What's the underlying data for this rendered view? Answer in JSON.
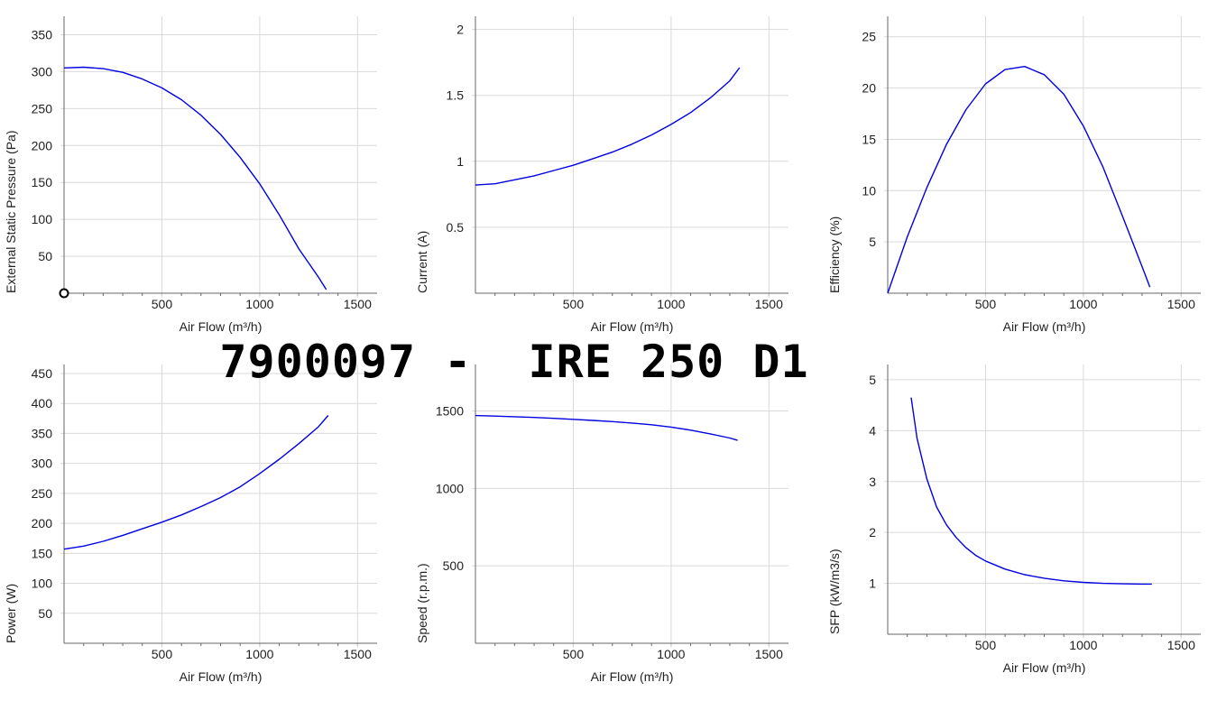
{
  "page_title": "7900097 -  IRE 250 D1",
  "colors": {
    "series": "#0000e0",
    "grid": "#d9d9d9",
    "axis": "#666666",
    "text": "#222222"
  },
  "chart_data": [
    {
      "type": "line",
      "xlabel": "Air Flow (m³/h)",
      "ylabel": "External Static Pressure (Pa)",
      "xlim": [
        0,
        1600
      ],
      "ylim": [
        0,
        375
      ],
      "xticks": [
        500,
        1000,
        1500
      ],
      "yticks": [
        50,
        100,
        150,
        200,
        250,
        300,
        350
      ],
      "grid": true,
      "marker_point": [
        0,
        0
      ],
      "series": [
        {
          "x": [
            0,
            100,
            200,
            300,
            400,
            500,
            600,
            700,
            800,
            900,
            1000,
            1100,
            1200,
            1300,
            1340
          ],
          "values": [
            305,
            306,
            304,
            299,
            290,
            278,
            262,
            241,
            215,
            184,
            148,
            106,
            60,
            22,
            5
          ]
        }
      ]
    },
    {
      "type": "line",
      "xlabel": "Air Flow (m³/h)",
      "ylabel": "Current (A)",
      "xlim": [
        0,
        1600
      ],
      "ylim": [
        0,
        2.1
      ],
      "xticks": [
        500,
        1000,
        1500
      ],
      "yticks": [
        0.5,
        1,
        1.5,
        2
      ],
      "yticklabels": [
        "0.5",
        "1",
        "1.5",
        "2"
      ],
      "grid": true,
      "series": [
        {
          "x": [
            0,
            100,
            200,
            300,
            400,
            500,
            600,
            700,
            800,
            900,
            1000,
            1100,
            1200,
            1300,
            1350
          ],
          "values": [
            0.82,
            0.83,
            0.86,
            0.89,
            0.93,
            0.97,
            1.02,
            1.07,
            1.13,
            1.2,
            1.28,
            1.37,
            1.48,
            1.61,
            1.71
          ]
        }
      ]
    },
    {
      "type": "line",
      "xlabel": "Air Flow (m³/h)",
      "ylabel": "Efficiency (%)",
      "xlim": [
        0,
        1600
      ],
      "ylim": [
        0,
        27
      ],
      "xticks": [
        500,
        1000,
        1500
      ],
      "yticks": [
        5,
        10,
        15,
        20,
        25
      ],
      "grid": true,
      "series": [
        {
          "x": [
            0,
            100,
            200,
            300,
            400,
            500,
            600,
            700,
            800,
            900,
            1000,
            1100,
            1200,
            1300,
            1340
          ],
          "values": [
            0,
            5.5,
            10.3,
            14.5,
            17.9,
            20.4,
            21.8,
            22.1,
            21.3,
            19.4,
            16.3,
            12.3,
            7.5,
            2.6,
            0.6
          ]
        }
      ]
    },
    {
      "type": "line",
      "xlabel": "Air Flow (m³/h)",
      "ylabel": "Power (W)",
      "xlim": [
        0,
        1600
      ],
      "ylim": [
        0,
        465
      ],
      "xticks": [
        500,
        1000,
        1500
      ],
      "yticks": [
        50,
        100,
        150,
        200,
        250,
        300,
        350,
        400,
        450
      ],
      "grid": true,
      "series": [
        {
          "x": [
            0,
            100,
            200,
            300,
            400,
            500,
            600,
            700,
            800,
            900,
            1000,
            1100,
            1200,
            1300,
            1350
          ],
          "values": [
            157,
            162,
            170,
            180,
            191,
            202,
            214,
            228,
            243,
            261,
            283,
            307,
            333,
            361,
            380
          ]
        }
      ]
    },
    {
      "type": "line",
      "xlabel": "Air Flow (m³/h)",
      "ylabel": "Speed (r.p.m.)",
      "xlim": [
        0,
        1600
      ],
      "ylim": [
        0,
        1800
      ],
      "xticks": [
        500,
        1000,
        1500
      ],
      "yticks": [
        500,
        1000,
        1500
      ],
      "grid": true,
      "series": [
        {
          "x": [
            0,
            100,
            200,
            300,
            400,
            500,
            600,
            700,
            800,
            900,
            1000,
            1100,
            1200,
            1300,
            1340
          ],
          "values": [
            1470,
            1467,
            1463,
            1458,
            1452,
            1446,
            1439,
            1431,
            1422,
            1411,
            1396,
            1376,
            1352,
            1325,
            1310
          ]
        }
      ]
    },
    {
      "type": "line",
      "xlabel": "Air Flow (m³/h)",
      "ylabel": "SFP (kW/m3/s)",
      "xlim": [
        0,
        1600
      ],
      "ylim": [
        0,
        5.3
      ],
      "xticks": [
        500,
        1000,
        1500
      ],
      "yticks": [
        1,
        2,
        3,
        4,
        5
      ],
      "grid": true,
      "series": [
        {
          "x": [
            120,
            150,
            200,
            250,
            300,
            350,
            400,
            450,
            500,
            600,
            700,
            800,
            900,
            1000,
            1100,
            1200,
            1300,
            1350
          ],
          "values": [
            4.65,
            3.85,
            3.05,
            2.5,
            2.15,
            1.9,
            1.7,
            1.55,
            1.44,
            1.28,
            1.17,
            1.1,
            1.05,
            1.02,
            1.0,
            0.99,
            0.985,
            0.985
          ]
        }
      ]
    }
  ]
}
